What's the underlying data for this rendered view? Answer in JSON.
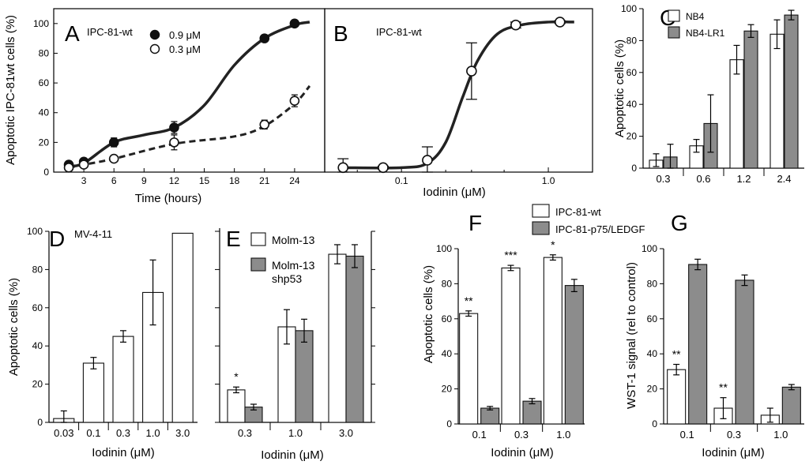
{
  "chart_data": [
    {
      "panel": "A",
      "type": "line",
      "subtitle": "IPC-81-wt",
      "xlabel": "Time (hours)",
      "ylabel": "Apoptotic IPC-81wt cells (%)",
      "xticks": [
        "3",
        "6",
        "9",
        "12",
        "15",
        "18",
        "21",
        "24"
      ],
      "yticks": [
        "0",
        "20",
        "40",
        "60",
        "80",
        "100"
      ],
      "xlim": [
        0,
        27
      ],
      "ylim": [
        0,
        110
      ],
      "series": [
        {
          "name": "0.9 μM",
          "marker": "filled",
          "x": [
            1.5,
            3,
            6,
            12,
            21,
            24
          ],
          "y": [
            5,
            7,
            20,
            30,
            90,
            100
          ],
          "err": [
            1,
            1,
            3,
            4,
            1,
            1
          ]
        },
        {
          "name": "0.3 μM",
          "marker": "open",
          "x": [
            1.5,
            3,
            6,
            12,
            21,
            24
          ],
          "y": [
            3,
            5,
            9,
            20,
            32,
            48
          ],
          "err": [
            1,
            1,
            1,
            5,
            3,
            4
          ]
        }
      ]
    },
    {
      "panel": "B",
      "type": "line",
      "xscale": "log",
      "subtitle": "IPC-81-wt",
      "xlabel": "Iodinin (μM)",
      "xticks": [
        "0.1",
        "1.0"
      ],
      "xlim": [
        0.03,
        2.0
      ],
      "ylim": [
        0,
        110
      ],
      "series": [
        {
          "name": "IPC-81-wt",
          "marker": "open",
          "x": [
            0.04,
            0.075,
            0.15,
            0.3,
            0.6,
            1.2
          ],
          "y": [
            3,
            3,
            8,
            68,
            99,
            101
          ],
          "err": [
            6,
            1,
            9,
            19,
            2,
            1
          ]
        }
      ]
    },
    {
      "panel": "C",
      "type": "bar",
      "ylabel": "Apoptotic cells (%)",
      "categories": [
        "0.3",
        "0.6",
        "1.2",
        "2.4"
      ],
      "yticks": [
        "0",
        "20",
        "40",
        "60",
        "80",
        "100"
      ],
      "ylim": [
        0,
        100
      ],
      "series": [
        {
          "name": "NB4",
          "color": "#ffffff",
          "values": [
            5,
            14,
            68,
            84
          ],
          "err": [
            4,
            4,
            9,
            9
          ]
        },
        {
          "name": "NB4-LR1",
          "color": "#8c8c8c",
          "values": [
            7,
            28,
            86,
            96
          ],
          "err": [
            8,
            18,
            4,
            3
          ]
        }
      ]
    },
    {
      "panel": "D",
      "type": "bar",
      "subtitle": "MV-4-11",
      "ylabel": "Apoptotic cells (%)",
      "categories": [
        "0.03",
        "0.1",
        "0.3",
        "1.0",
        "3.0"
      ],
      "yticks": [
        "0",
        "20",
        "40",
        "60",
        "80",
        "100"
      ],
      "ylim": [
        0,
        100
      ],
      "series": [
        {
          "name": "MV-4-11",
          "color": "#ffffff",
          "values": [
            2,
            31,
            45,
            68,
            99
          ],
          "err": [
            4,
            3,
            3,
            17,
            0
          ]
        }
      ]
    },
    {
      "panel": "E",
      "type": "bar",
      "categories": [
        "0.3",
        "1.0",
        "3.0"
      ],
      "ylim": [
        0,
        100
      ],
      "annotations": [
        "*"
      ],
      "series": [
        {
          "name": "Molm-13",
          "color": "#ffffff",
          "values": [
            17,
            50,
            88
          ],
          "err": [
            1.5,
            9,
            5
          ]
        },
        {
          "name": "Molm-13 shp53",
          "color": "#8c8c8c",
          "values": [
            8,
            48,
            87
          ],
          "err": [
            1.5,
            6,
            6
          ]
        }
      ]
    },
    {
      "panel": "F",
      "type": "bar",
      "ylabel": "Apoptotic cells (%)",
      "categories": [
        "0.1",
        "0.3",
        "1.0"
      ],
      "yticks": [
        "0",
        "20",
        "40",
        "60",
        "80",
        "100"
      ],
      "ylim": [
        0,
        100
      ],
      "annotations": [
        "**",
        "***",
        "*"
      ],
      "series": [
        {
          "name": "IPC-81-wt",
          "color": "#ffffff",
          "values": [
            63,
            89,
            95
          ],
          "err": [
            1.5,
            1.5,
            1.5
          ]
        },
        {
          "name": "IPC-81-p75/LEDGF",
          "color": "#8c8c8c",
          "values": [
            9,
            13,
            79
          ],
          "err": [
            1,
            1.5,
            3.5
          ]
        }
      ]
    },
    {
      "panel": "G",
      "type": "bar",
      "ylabel": "WST-1 signal (rel to control)",
      "categories": [
        "0.1",
        "0.3",
        "1.0"
      ],
      "yticks": [
        "0",
        "20",
        "40",
        "60",
        "80",
        "100"
      ],
      "ylim": [
        0,
        100
      ],
      "annotations": [
        "**",
        "**"
      ],
      "series": [
        {
          "name": "IPC-81-wt",
          "color": "#ffffff",
          "values": [
            31,
            9,
            5
          ],
          "err": [
            3,
            6,
            4
          ]
        },
        {
          "name": "IPC-81-p75/LEDGF",
          "color": "#8c8c8c",
          "values": [
            91,
            82,
            21
          ],
          "err": [
            3,
            3,
            1.5
          ]
        }
      ]
    }
  ],
  "shared": {
    "xlabel_iodinin": "Iodinin (μM)"
  }
}
